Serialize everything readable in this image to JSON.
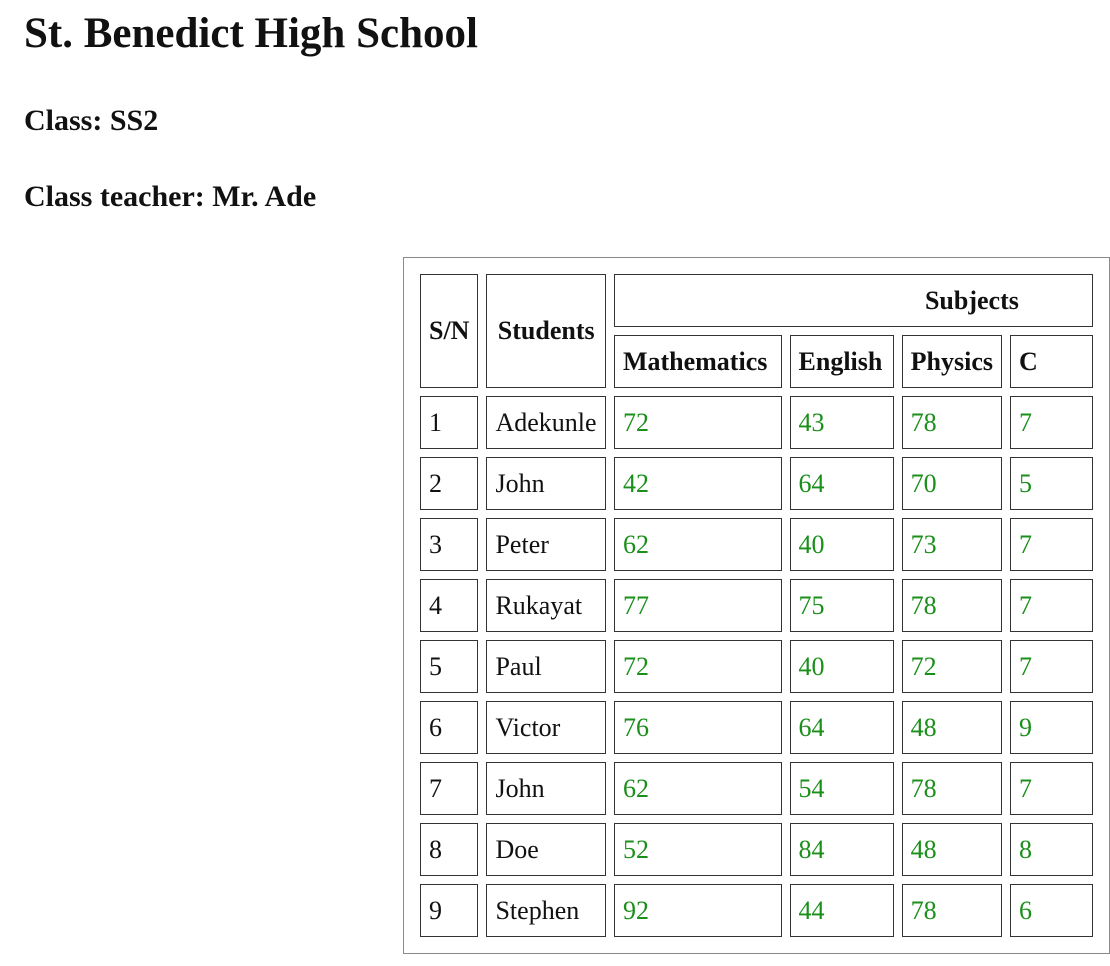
{
  "page": {
    "school_name": "St. Benedict High School",
    "class_label": "Class: SS2",
    "teacher_label": "Class teacher: Mr. Ade"
  },
  "table": {
    "headers": {
      "sn": "S/N",
      "students": "Students",
      "subjects": "Subjects",
      "subject_names": [
        "Mathematics",
        "English",
        "Physics",
        "C"
      ]
    },
    "rows": [
      {
        "sn": "1",
        "name": "Adekunle",
        "scores": [
          "72",
          "43",
          "78",
          "7"
        ]
      },
      {
        "sn": "2",
        "name": "John",
        "scores": [
          "42",
          "64",
          "70",
          "5"
        ]
      },
      {
        "sn": "3",
        "name": "Peter",
        "scores": [
          "62",
          "40",
          "73",
          "7"
        ]
      },
      {
        "sn": "4",
        "name": "Rukayat",
        "scores": [
          "77",
          "75",
          "78",
          "7"
        ]
      },
      {
        "sn": "5",
        "name": "Paul",
        "scores": [
          "72",
          "40",
          "72",
          "7"
        ]
      },
      {
        "sn": "6",
        "name": "Victor",
        "scores": [
          "76",
          "64",
          "48",
          "9"
        ]
      },
      {
        "sn": "7",
        "name": "John",
        "scores": [
          "62",
          "54",
          "78",
          "7"
        ]
      },
      {
        "sn": "8",
        "name": "Doe",
        "scores": [
          "52",
          "84",
          "48",
          "8"
        ]
      },
      {
        "sn": "9",
        "name": "Stephen",
        "scores": [
          "92",
          "44",
          "78",
          "6"
        ]
      }
    ]
  },
  "colors": {
    "score_text": "#1a8f1a",
    "cell_border": "#333333",
    "table_border": "#8a8a8a"
  }
}
